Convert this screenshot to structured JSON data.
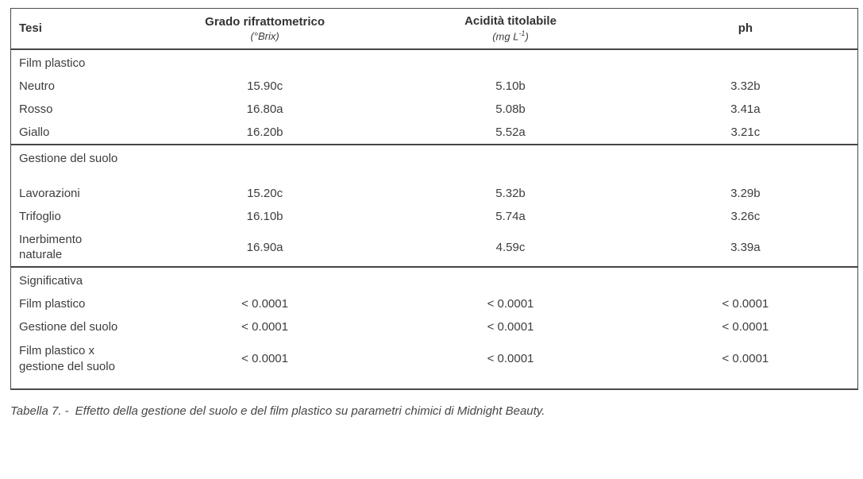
{
  "table": {
    "columns": [
      {
        "label": "Tesi"
      },
      {
        "label": "Grado rifrattometrico",
        "unit": "(°Brix)"
      },
      {
        "label": "Acidità titolabile",
        "unit_pre": "(mg L",
        "unit_sup": "-1",
        "unit_post": ")"
      },
      {
        "label": "ph"
      }
    ],
    "rows": [
      {
        "kind": "section",
        "label": "Film plastico",
        "values": [
          "",
          "",
          ""
        ]
      },
      {
        "kind": "data",
        "label": "Neutro",
        "values": [
          "15.90c",
          "5.10b",
          "3.32b"
        ]
      },
      {
        "kind": "data",
        "label": "Rosso",
        "values": [
          "16.80a",
          "5.08b",
          "3.41a"
        ]
      },
      {
        "kind": "data",
        "label": "Giallo",
        "values": [
          "16.20b",
          "5.52a",
          "3.21c"
        ]
      },
      {
        "kind": "section",
        "label": "Gestione del suolo",
        "values": [
          "",
          "",
          ""
        ]
      },
      {
        "kind": "data",
        "label": "Lavorazioni",
        "values": [
          "15.20c",
          "5.32b",
          "3.29b"
        ]
      },
      {
        "kind": "data",
        "label": "Trifoglio",
        "values": [
          "16.10b",
          "5.74a",
          "3.26c"
        ]
      },
      {
        "kind": "data",
        "label": "Inerbimento naturale",
        "values": [
          "16.90a",
          "4.59c",
          "3.39a"
        ]
      },
      {
        "kind": "section",
        "label": "Significativa",
        "values": [
          "",
          "",
          ""
        ]
      },
      {
        "kind": "data",
        "label": "Film plastico",
        "values": [
          "< 0.0001",
          "< 0.0001",
          "< 0.0001"
        ]
      },
      {
        "kind": "data",
        "label": "Gestione del suolo",
        "values": [
          "< 0.0001",
          "< 0.0001",
          "< 0.0001"
        ]
      },
      {
        "kind": "data",
        "label": "Film plastico x gestione del suolo",
        "values": [
          "< 0.0001",
          "< 0.0001",
          "< 0.0001"
        ]
      }
    ]
  },
  "caption": {
    "prefix": "Tabella 7. -",
    "text": "Effetto della gestione del suolo e del film plastico su parametri chimici di Midnight Beauty."
  }
}
